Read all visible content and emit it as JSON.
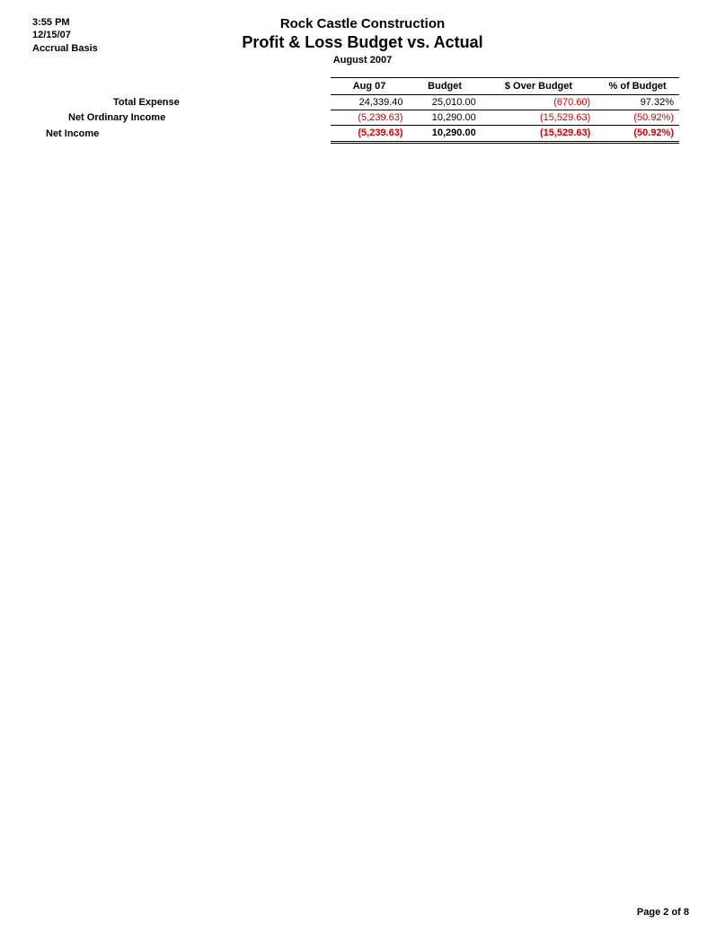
{
  "meta": {
    "time": "3:55 PM",
    "date": "12/15/07",
    "basis": "Accrual Basis"
  },
  "header": {
    "company": "Rock Castle Construction",
    "title": "Profit & Loss Budget vs. Actual",
    "period": "August 2007"
  },
  "columns": {
    "c1": "Aug 07",
    "c2": "Budget",
    "c3": "$ Over Budget",
    "c4": "% of Budget"
  },
  "rows": {
    "total_expense": {
      "label": "Total Expense",
      "aug": "24,339.40",
      "budget": "25,010.00",
      "over": "(670.60)",
      "pct": "97.32%",
      "over_neg": true,
      "pct_neg": false
    },
    "net_ordinary": {
      "label": "Net Ordinary Income",
      "aug": "(5,239.63)",
      "budget": "10,290.00",
      "over": "(15,529.63)",
      "pct": "(50.92%)",
      "aug_neg": true,
      "over_neg": true,
      "pct_neg": true
    },
    "net_income": {
      "label": "Net Income",
      "aug": "(5,239.63)",
      "budget": "10,290.00",
      "over": "(15,529.63)",
      "pct": "(50.92%)",
      "aug_neg": true,
      "over_neg": true,
      "pct_neg": true
    }
  },
  "footer": {
    "page": "Page 2 of 8"
  },
  "style": {
    "neg_color": "#d40000",
    "text_color": "#000000",
    "background": "#ffffff",
    "font_family": "Arial",
    "body_fontsize": 11,
    "title_fontsize": 18,
    "company_fontsize": 15
  }
}
